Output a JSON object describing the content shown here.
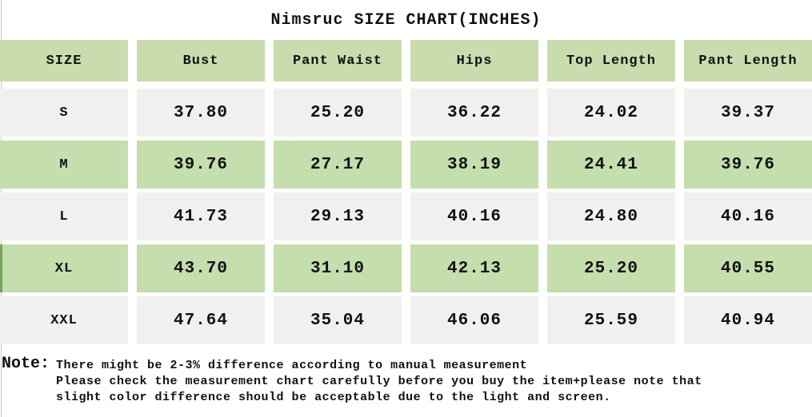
{
  "chart_data": {
    "type": "table",
    "title": "Nimsruc SIZE CHART(INCHES)",
    "columns": [
      "SIZE",
      "Bust",
      "Pant Waist",
      "Hips",
      "Top Length",
      "Pant Length"
    ],
    "rows": [
      [
        "S",
        "37.80",
        "25.20",
        "36.22",
        "24.02",
        "39.37"
      ],
      [
        "M",
        "39.76",
        "27.17",
        "38.19",
        "24.41",
        "39.76"
      ],
      [
        "L",
        "41.73",
        "29.13",
        "40.16",
        "24.80",
        "40.16"
      ],
      [
        "XL",
        "43.70",
        "31.10",
        "42.13",
        "25.20",
        "40.55"
      ],
      [
        "XXL",
        "47.64",
        "35.04",
        "46.06",
        "25.59",
        "40.94"
      ]
    ]
  },
  "note": {
    "label": "Note:",
    "lines": [
      "There might be 2-3% difference according to manual measurement",
      "Please check the measurement chart carefully before you buy the item+please note that",
      "slight color difference should be acceptable due to the light and screen."
    ]
  },
  "colors": {
    "header_green": "#c9dcae",
    "row_green": "#c5dead",
    "row_gray": "#f0f0ee",
    "xl_edge_green": "#77a457",
    "left_line_gray": "#c9c9c9",
    "text": "#111111"
  }
}
